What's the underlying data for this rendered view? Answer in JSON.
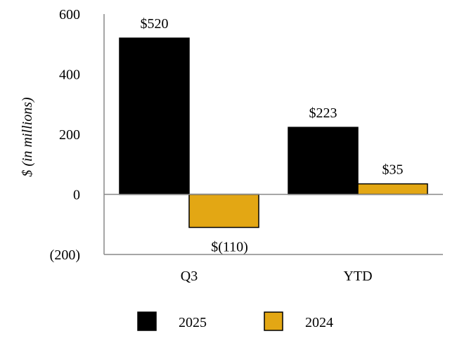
{
  "chart_data": {
    "type": "bar",
    "title": "",
    "xlabel": "",
    "ylabel": "$ (in millions)",
    "ylim": [
      -200,
      600
    ],
    "yticks": [
      600,
      400,
      200,
      0,
      -200
    ],
    "ytick_labels": [
      "600",
      "400",
      "200",
      "0",
      "(200)"
    ],
    "grid": false,
    "categories": [
      "Q3",
      "YTD"
    ],
    "series": [
      {
        "name": "2025",
        "values": [
          520,
          223
        ],
        "labels": [
          "$520",
          "$223"
        ],
        "color": "#000000"
      },
      {
        "name": "2024",
        "values": [
          -110,
          35
        ],
        "labels": [
          "$(110)",
          "$35"
        ],
        "color": "#E3A714"
      }
    ],
    "legend_position": "bottom-center"
  }
}
